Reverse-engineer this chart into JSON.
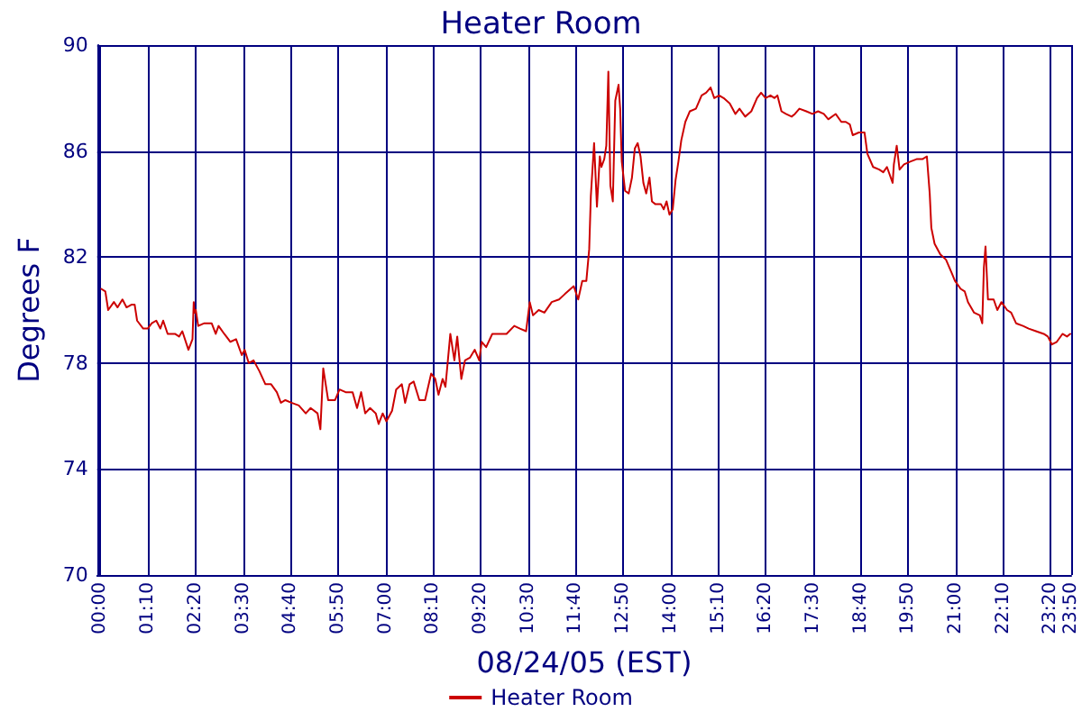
{
  "chart_data": {
    "type": "line",
    "title": "Heater Room",
    "xlabel": "08/24/05 (EST)",
    "ylabel": "Degrees F",
    "x": [
      0.02,
      0.12,
      0.19,
      0.33,
      0.42,
      0.54,
      0.64,
      0.76,
      0.84,
      0.9,
      1.05,
      1.16,
      1.26,
      1.37,
      1.47,
      1.54,
      1.65,
      1.83,
      1.93,
      2.01,
      2.16,
      2.26,
      2.29,
      2.31,
      2.34,
      2.4,
      2.55,
      2.73,
      2.83,
      2.9,
      3.04,
      3.19,
      3.33,
      3.47,
      3.54,
      3.64,
      3.76,
      3.9,
      4.05,
      4.19,
      4.33,
      4.43,
      4.54,
      4.69,
      4.87,
      5.04,
      5.16,
      5.33,
      5.4,
      5.47,
      5.59,
      5.76,
      5.87,
      6.02,
      6.19,
      6.3,
      6.4,
      6.5,
      6.62,
      6.76,
      6.83,
      6.93,
      7.02,
      7.16,
      7.26,
      7.4,
      7.48,
      7.59,
      7.69,
      7.83,
      7.97,
      8.12,
      8.22,
      8.3,
      8.4,
      8.47,
      8.59,
      8.69,
      8.76,
      8.86,
      8.95,
      9.07,
      9.19,
      9.3,
      9.36,
      9.47,
      9.62,
      9.79,
      9.97,
      10.16,
      10.3,
      10.45,
      10.54,
      10.62,
      10.76,
      10.9,
      11.08,
      11.26,
      11.4,
      11.62,
      11.73,
      11.83,
      11.93,
      12.0,
      12.04,
      12.12,
      12.19,
      12.26,
      12.3,
      12.37,
      12.42,
      12.47,
      12.52,
      12.58,
      12.64,
      12.72,
      12.76,
      12.8,
      12.88,
      12.97,
      13.05,
      13.12,
      13.19,
      13.26,
      13.33,
      13.4,
      13.48,
      13.54,
      13.62,
      13.76,
      13.83,
      13.9,
      13.97,
      14.05,
      14.12,
      14.19,
      14.26,
      14.36,
      14.47,
      14.62,
      14.76,
      14.87,
      14.98,
      15.07,
      15.19,
      15.3,
      15.45,
      15.59,
      15.69,
      15.83,
      15.98,
      16.12,
      16.22,
      16.33,
      16.45,
      16.55,
      16.62,
      16.72,
      16.83,
      16.97,
      17.05,
      17.16,
      17.33,
      17.48,
      17.62,
      17.76,
      17.87,
      18.05,
      18.19,
      18.3,
      18.4,
      18.47,
      18.62,
      18.76,
      18.83,
      18.97,
      19.12,
      19.22,
      19.31,
      19.45,
      19.48,
      19.55,
      19.62,
      19.73,
      19.88,
      20.05,
      20.19,
      20.29,
      20.36,
      20.4,
      20.48,
      20.62,
      20.76,
      20.9,
      20.98,
      21.12,
      21.22,
      21.3,
      21.45,
      21.59,
      21.65,
      21.69,
      21.73,
      21.79,
      21.93,
      22.02,
      22.12,
      22.26,
      22.36,
      22.48,
      22.65,
      22.79,
      22.97,
      23.16,
      23.26,
      23.36,
      23.48,
      23.62,
      23.73,
      23.81
    ],
    "series": [
      {
        "name": "Heater Room",
        "color": "#cc0000",
        "values": [
          80.8,
          80.7,
          80.0,
          80.3,
          80.1,
          80.4,
          80.1,
          80.2,
          80.2,
          79.6,
          79.3,
          79.3,
          79.5,
          79.6,
          79.3,
          79.6,
          79.1,
          79.1,
          79.0,
          79.2,
          78.5,
          78.9,
          80.3,
          79.9,
          80.0,
          79.4,
          79.5,
          79.5,
          79.1,
          79.4,
          79.1,
          78.8,
          78.9,
          78.3,
          78.5,
          78.0,
          78.1,
          77.7,
          77.2,
          77.2,
          76.9,
          76.5,
          76.6,
          76.5,
          76.4,
          76.1,
          76.3,
          76.1,
          75.5,
          77.8,
          76.6,
          76.6,
          77.0,
          76.9,
          76.9,
          76.3,
          76.9,
          76.1,
          76.3,
          76.1,
          75.7,
          76.1,
          75.8,
          76.2,
          77.0,
          77.2,
          76.5,
          77.2,
          77.3,
          76.6,
          76.6,
          77.6,
          77.4,
          76.8,
          77.4,
          77.1,
          79.1,
          78.1,
          79.0,
          77.4,
          78.1,
          78.2,
          78.5,
          78.1,
          78.8,
          78.6,
          79.1,
          79.1,
          79.1,
          79.4,
          79.3,
          79.2,
          80.3,
          79.8,
          80.0,
          79.9,
          80.3,
          80.4,
          80.6,
          80.9,
          80.4,
          81.1,
          81.1,
          82.3,
          84.3,
          86.3,
          83.9,
          85.8,
          85.4,
          85.7,
          86.2,
          89.0,
          84.7,
          84.1,
          87.9,
          88.5,
          87.6,
          85.6,
          84.5,
          84.4,
          85.0,
          86.1,
          86.3,
          85.8,
          84.8,
          84.4,
          85.0,
          84.1,
          84.0,
          84.0,
          83.8,
          84.1,
          83.6,
          83.8,
          84.9,
          85.6,
          86.4,
          87.1,
          87.5,
          87.6,
          88.1,
          88.2,
          88.4,
          88.0,
          88.1,
          88.0,
          87.8,
          87.4,
          87.6,
          87.3,
          87.5,
          88.0,
          88.2,
          88.0,
          88.1,
          88.0,
          88.1,
          87.5,
          87.4,
          87.3,
          87.4,
          87.6,
          87.5,
          87.4,
          87.5,
          87.4,
          87.2,
          87.4,
          87.1,
          87.1,
          87.0,
          86.6,
          86.7,
          86.7,
          85.9,
          85.4,
          85.3,
          85.2,
          85.4,
          84.8,
          85.5,
          86.2,
          85.3,
          85.5,
          85.6,
          85.7,
          85.7,
          85.8,
          84.4,
          83.1,
          82.5,
          82.1,
          81.9,
          81.4,
          81.1,
          80.8,
          80.7,
          80.3,
          79.9,
          79.8,
          79.5,
          81.6,
          82.4,
          80.4,
          80.4,
          80.0,
          80.3,
          80.0,
          79.9,
          79.5,
          79.4,
          79.3,
          79.2,
          79.1,
          79.0,
          78.7,
          78.8,
          79.1,
          79.0,
          79.1
        ]
      }
    ],
    "xlim": [
      -0.08,
      23.8333
    ],
    "xticks": [
      {
        "value": 0,
        "label": "00:00"
      },
      {
        "value": 1.1667,
        "label": "01:10"
      },
      {
        "value": 2.3333,
        "label": "02:20"
      },
      {
        "value": 3.5,
        "label": "03:30"
      },
      {
        "value": 4.6667,
        "label": "04:40"
      },
      {
        "value": 5.8333,
        "label": "05:50"
      },
      {
        "value": 7,
        "label": "07:00"
      },
      {
        "value": 8.1667,
        "label": "08:10"
      },
      {
        "value": 9.3333,
        "label": "09:20"
      },
      {
        "value": 10.5,
        "label": "10:30"
      },
      {
        "value": 11.6667,
        "label": "11:40"
      },
      {
        "value": 12.8333,
        "label": "12:50"
      },
      {
        "value": 14,
        "label": "14:00"
      },
      {
        "value": 15.1667,
        "label": "15:10"
      },
      {
        "value": 16.3333,
        "label": "16:20"
      },
      {
        "value": 17.5,
        "label": "17:30"
      },
      {
        "value": 18.6667,
        "label": "18:40"
      },
      {
        "value": 19.8333,
        "label": "19:50"
      },
      {
        "value": 21,
        "label": "21:00"
      },
      {
        "value": 22.1667,
        "label": "22:10"
      },
      {
        "value": 23.3333,
        "label": "23:20"
      },
      {
        "value": 23.8333,
        "label": "23:50"
      }
    ],
    "ylim": [
      70,
      90
    ],
    "yticks": [
      70,
      74,
      78,
      82,
      86,
      90
    ],
    "grid": true,
    "legend": "bottom",
    "marker": "none",
    "line_style": "solid"
  }
}
